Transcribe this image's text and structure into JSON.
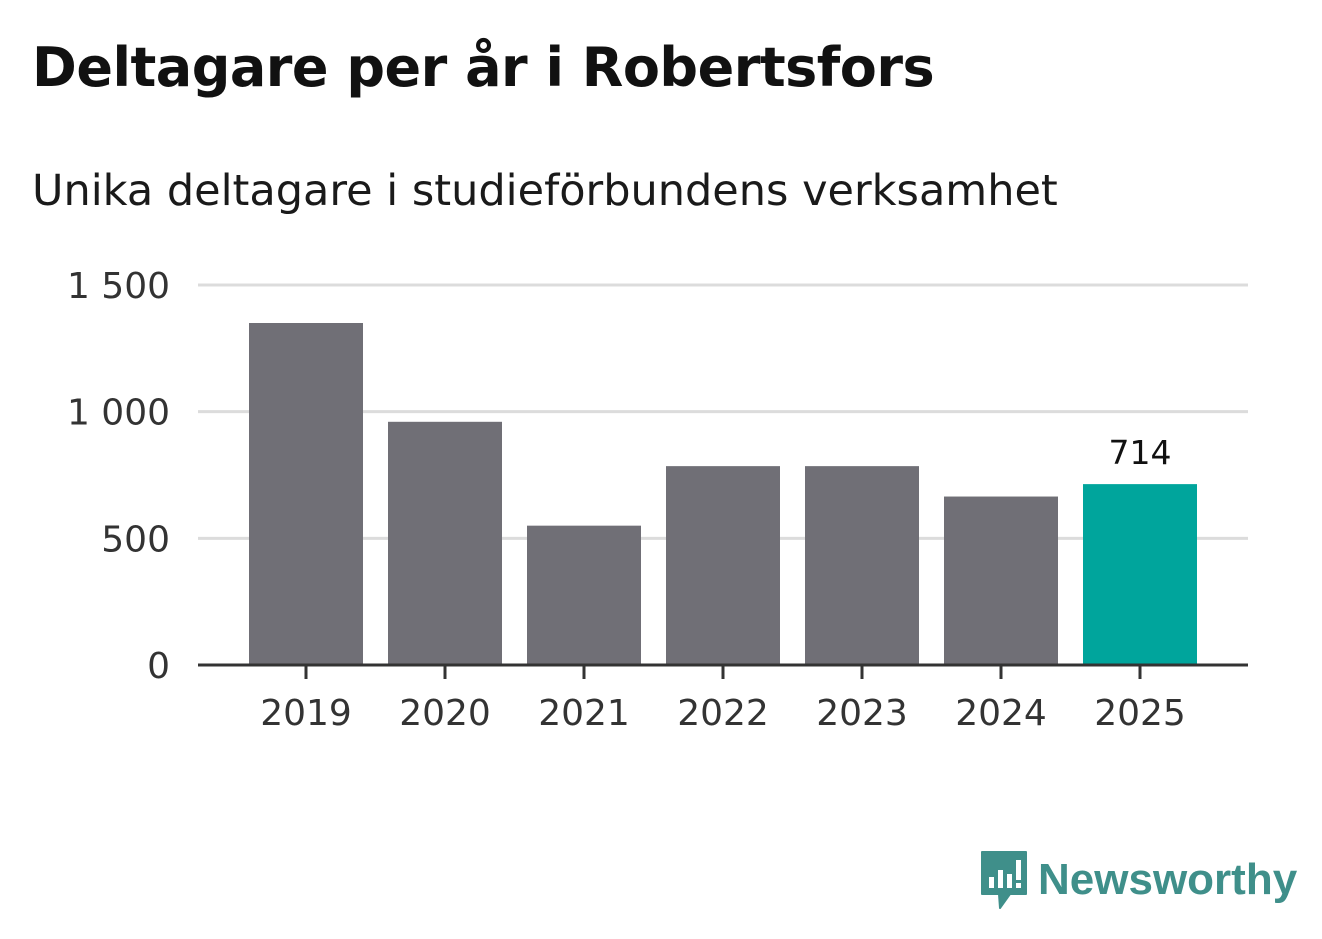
{
  "colors": {
    "bar_default": "#706f76",
    "bar_highlight": "#00a59c",
    "gridline": "#dcdcdc",
    "axis": "#333333",
    "logo": "#3f8f8a"
  },
  "brand": {
    "name": "Newsworthy",
    "icon": "chart-bubble-icon"
  },
  "chart_data": {
    "type": "bar",
    "title": "Deltagare per år i Robertsfors",
    "subtitle": "Unika deltagare i studieförbundens verksamhet",
    "categories": [
      "2019",
      "2020",
      "2021",
      "2022",
      "2023",
      "2024",
      "2025"
    ],
    "values": [
      1350,
      960,
      550,
      785,
      785,
      665,
      714
    ],
    "highlight_index": 6,
    "data_labels": [
      {
        "index": 6,
        "text": "714"
      }
    ],
    "ylim": [
      0,
      1500
    ],
    "yticks": [
      0,
      500,
      1000,
      1500
    ],
    "ytick_labels": [
      "0",
      "500",
      "1 000",
      "1 500"
    ],
    "xlabel": "",
    "ylabel": "",
    "grid": true,
    "legend": "none"
  }
}
